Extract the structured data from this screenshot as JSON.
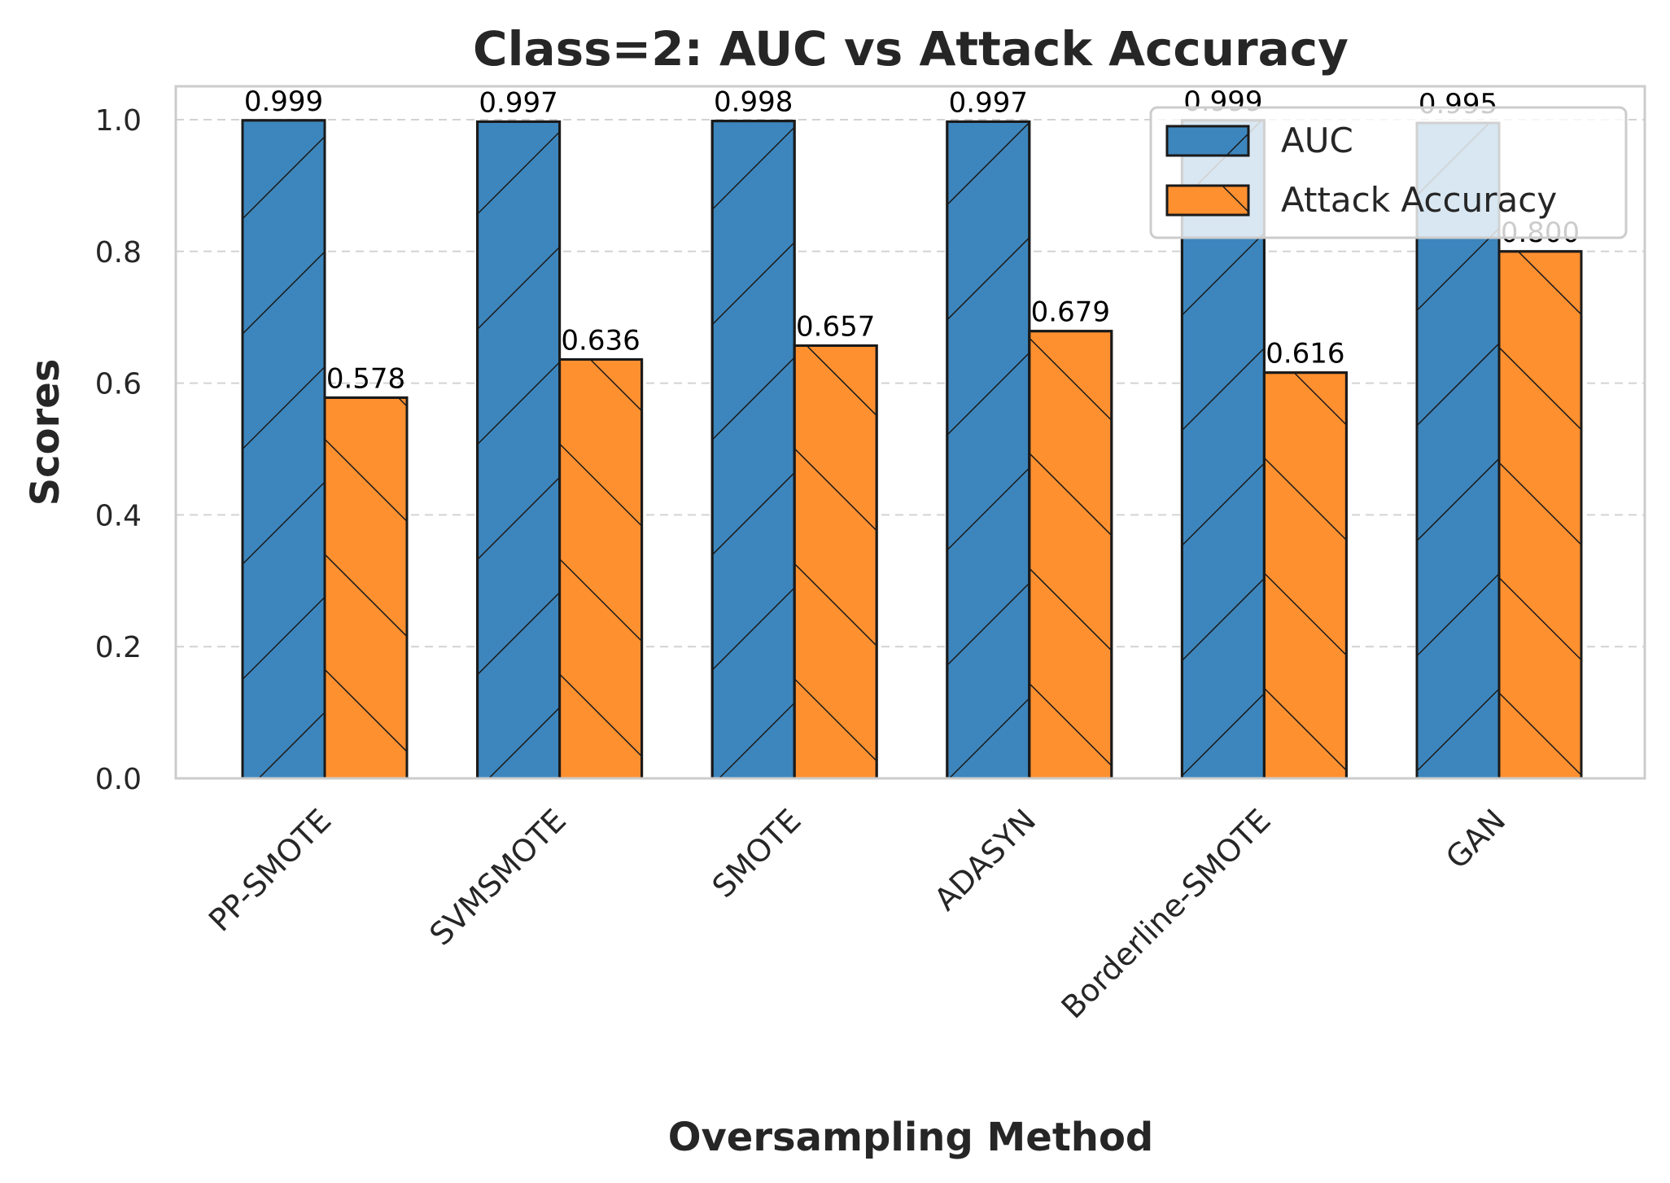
{
  "chart_data": {
    "type": "bar",
    "title": "Class=2: AUC vs Attack Accuracy",
    "xlabel": "Oversampling Method",
    "ylabel": "Scores",
    "categories": [
      "PP-SMOTE",
      "SVMSMOTE",
      "SMOTE",
      "ADASYN",
      "Borderline-SMOTE",
      "GAN"
    ],
    "series": [
      {
        "name": "AUC",
        "color": "#3d86bd",
        "hatch": "forward",
        "values": [
          0.999,
          0.997,
          0.998,
          0.997,
          0.999,
          0.995
        ]
      },
      {
        "name": "Attack Accuracy",
        "color": "#ff9030",
        "hatch": "backward",
        "values": [
          0.578,
          0.636,
          0.657,
          0.679,
          0.616,
          0.8
        ]
      }
    ],
    "value_labels": [
      [
        "0.999",
        "0.997",
        "0.998",
        "0.997",
        "0.999",
        "0.995"
      ],
      [
        "0.578",
        "0.636",
        "0.657",
        "0.679",
        "0.616",
        "0.800"
      ]
    ],
    "yticks": [
      "0.0",
      "0.2",
      "0.4",
      "0.6",
      "0.8",
      "1.0"
    ],
    "ylim": [
      0,
      1.05
    ],
    "grid": true,
    "legend_position": "top-right"
  }
}
